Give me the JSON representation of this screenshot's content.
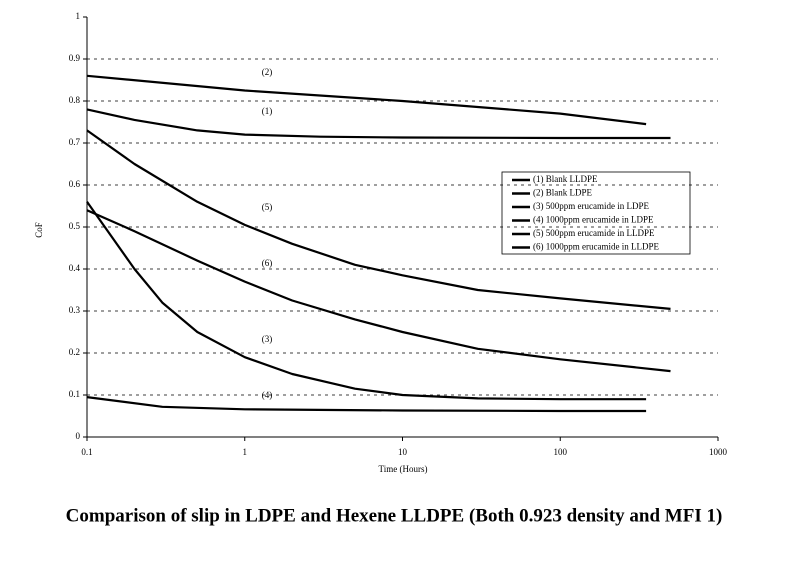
{
  "chart_data": {
    "type": "line",
    "title": "Comparison of slip in LDPE and Hexene LLDPE (Both 0.923 density and MFI 1)",
    "x_label": "Time (Hours)",
    "y_label": "CoF",
    "xscale": "log",
    "grid": true,
    "xlim": [
      0.1,
      1000
    ],
    "xticks": [
      0.1,
      1,
      10,
      100,
      1000
    ],
    "ylim": [
      0,
      1
    ],
    "yticks": [
      0,
      0.1,
      0.2,
      0.3,
      0.4,
      0.5,
      0.6,
      0.7,
      0.8,
      0.9,
      1
    ],
    "series": [
      {
        "name": "(1) Blank LLDPE",
        "color": "#000000",
        "x": [
          0.1,
          0.2,
          0.5,
          1,
          3,
          10,
          100,
          500
        ],
        "values": [
          0.78,
          0.755,
          0.73,
          0.72,
          0.715,
          0.713,
          0.712,
          0.712
        ]
      },
      {
        "name": "(2) Blank LDPE",
        "color": "#000000",
        "x": [
          0.1,
          1,
          10,
          100,
          350
        ],
        "values": [
          0.86,
          0.825,
          0.8,
          0.77,
          0.745
        ]
      },
      {
        "name": "(3) 500ppm erucamide in LDPE",
        "color": "#000000",
        "x": [
          0.1,
          0.2,
          0.3,
          0.5,
          1,
          2,
          5,
          10,
          30,
          100,
          350
        ],
        "values": [
          0.56,
          0.4,
          0.32,
          0.25,
          0.19,
          0.15,
          0.115,
          0.1,
          0.092,
          0.09,
          0.09
        ]
      },
      {
        "name": "(4) 1000ppm erucamide in LDPE",
        "color": "#000000",
        "x": [
          0.1,
          0.3,
          1,
          10,
          100,
          350
        ],
        "values": [
          0.095,
          0.072,
          0.066,
          0.063,
          0.062,
          0.062
        ]
      },
      {
        "name": "(5) 500ppm erucamide in LLDPE",
        "color": "#000000",
        "x": [
          0.1,
          0.2,
          0.5,
          1,
          2,
          5,
          10,
          30,
          100,
          500
        ],
        "values": [
          0.73,
          0.65,
          0.56,
          0.505,
          0.46,
          0.41,
          0.385,
          0.35,
          0.33,
          0.305
        ]
      },
      {
        "name": "(6) 1000ppm erucamide in LLDPE",
        "color": "#000000",
        "x": [
          0.1,
          0.2,
          0.5,
          1,
          2,
          5,
          10,
          30,
          100,
          500
        ],
        "values": [
          0.54,
          0.49,
          0.42,
          0.37,
          0.325,
          0.28,
          0.25,
          0.21,
          0.185,
          0.157
        ]
      }
    ],
    "annotations": [
      "(2)",
      "(1)",
      "(5)",
      "(6)",
      "(3)",
      "(4)"
    ]
  }
}
